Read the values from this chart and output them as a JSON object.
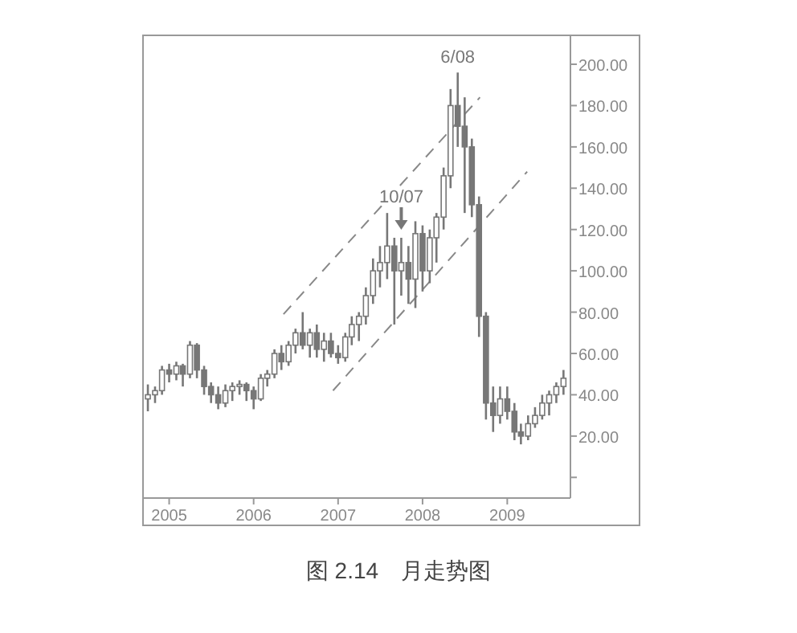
{
  "chart_data": {
    "type": "candlestick",
    "title": "图 2.14　月走势图",
    "x": [
      "2004-10",
      "2004-11",
      "2004-12",
      "2005-01",
      "2005-02",
      "2005-03",
      "2005-04",
      "2005-05",
      "2005-06",
      "2005-07",
      "2005-08",
      "2005-09",
      "2005-10",
      "2005-11",
      "2005-12",
      "2006-01",
      "2006-02",
      "2006-03",
      "2006-04",
      "2006-05",
      "2006-06",
      "2006-07",
      "2006-08",
      "2006-09",
      "2006-10",
      "2006-11",
      "2006-12",
      "2007-01",
      "2007-02",
      "2007-03",
      "2007-04",
      "2007-05",
      "2007-06",
      "2007-07",
      "2007-08",
      "2007-09",
      "2007-10",
      "2007-11",
      "2007-12",
      "2008-01",
      "2008-02",
      "2008-03",
      "2008-04",
      "2008-05",
      "2008-06",
      "2008-07",
      "2008-08",
      "2008-09",
      "2008-10",
      "2008-11",
      "2008-12",
      "2009-01",
      "2009-02",
      "2009-03",
      "2009-04",
      "2009-05",
      "2009-06",
      "2009-07",
      "2009-08",
      "2009-09"
    ],
    "ohlc": [
      [
        38,
        45,
        32,
        40
      ],
      [
        40,
        44,
        36,
        42
      ],
      [
        42,
        54,
        40,
        52
      ],
      [
        52,
        55,
        46,
        50
      ],
      [
        50,
        56,
        47,
        54
      ],
      [
        54,
        55,
        44,
        50
      ],
      [
        50,
        66,
        48,
        64
      ],
      [
        64,
        65,
        48,
        52
      ],
      [
        52,
        54,
        40,
        44
      ],
      [
        44,
        46,
        36,
        40
      ],
      [
        40,
        44,
        33,
        36
      ],
      [
        36,
        45,
        34,
        42
      ],
      [
        42,
        46,
        37,
        44
      ],
      [
        44,
        47,
        40,
        45
      ],
      [
        45,
        46,
        37,
        42
      ],
      [
        42,
        44,
        33,
        38
      ],
      [
        38,
        50,
        37,
        48
      ],
      [
        48,
        52,
        44,
        50
      ],
      [
        50,
        62,
        48,
        60
      ],
      [
        60,
        64,
        52,
        56
      ],
      [
        56,
        66,
        54,
        64
      ],
      [
        64,
        72,
        60,
        70
      ],
      [
        70,
        80,
        62,
        64
      ],
      [
        64,
        72,
        58,
        70
      ],
      [
        70,
        74,
        58,
        62
      ],
      [
        62,
        70,
        56,
        66
      ],
      [
        66,
        70,
        58,
        60
      ],
      [
        60,
        64,
        55,
        58
      ],
      [
        58,
        70,
        56,
        68
      ],
      [
        68,
        78,
        64,
        74
      ],
      [
        74,
        80,
        66,
        78
      ],
      [
        78,
        92,
        74,
        88
      ],
      [
        88,
        106,
        84,
        100
      ],
      [
        100,
        112,
        92,
        104
      ],
      [
        104,
        128,
        96,
        112
      ],
      [
        112,
        116,
        74,
        100
      ],
      [
        100,
        116,
        88,
        104
      ],
      [
        104,
        112,
        84,
        96
      ],
      [
        96,
        124,
        82,
        118
      ],
      [
        118,
        122,
        90,
        100
      ],
      [
        100,
        120,
        94,
        116
      ],
      [
        116,
        128,
        104,
        126
      ],
      [
        126,
        150,
        120,
        146
      ],
      [
        146,
        188,
        140,
        180
      ],
      [
        180,
        196,
        160,
        170
      ],
      [
        170,
        184,
        128,
        160
      ],
      [
        160,
        164,
        126,
        132
      ],
      [
        132,
        136,
        68,
        78
      ],
      [
        78,
        80,
        28,
        36
      ],
      [
        36,
        44,
        22,
        30
      ],
      [
        30,
        44,
        26,
        38
      ],
      [
        38,
        44,
        28,
        32
      ],
      [
        32,
        36,
        18,
        22
      ],
      [
        22,
        26,
        16,
        20
      ],
      [
        20,
        30,
        18,
        26
      ],
      [
        26,
        34,
        24,
        30
      ],
      [
        30,
        40,
        28,
        36
      ],
      [
        36,
        42,
        30,
        40
      ],
      [
        40,
        46,
        36,
        44
      ],
      [
        44,
        52,
        40,
        48
      ]
    ],
    "color": "#777777",
    "series": [
      {
        "type": "line",
        "x": [
          "2006-05-10",
          "2008-09-05"
        ],
        "values": [
          79,
          184
        ],
        "color": "#888888",
        "line_style": "dashed"
      },
      {
        "type": "line",
        "x": [
          "2006-12-10",
          "2009-03-28"
        ],
        "values": [
          42,
          148
        ],
        "color": "#888888",
        "line_style": "dashed"
      }
    ],
    "annotations": [
      {
        "text": "6/08",
        "x": "2008-06",
        "y": 196
      },
      {
        "text": "10/07",
        "x": "2007-10",
        "y": 116
      }
    ],
    "xlim": [
      "2004-09-10",
      "2009-10-01"
    ],
    "xticks": [
      {
        "value": "2005-01",
        "label": "2005"
      },
      {
        "value": "2006-01",
        "label": "2006"
      },
      {
        "value": "2007-01",
        "label": "2007"
      },
      {
        "value": "2008-01",
        "label": "2008"
      },
      {
        "value": "2009-01",
        "label": "2009"
      }
    ],
    "ylim": [
      -10,
      214
    ],
    "yticks": [
      {
        "value": 0,
        "label": null
      },
      {
        "value": 20,
        "label": "20.00"
      },
      {
        "value": 40,
        "label": "40.00"
      },
      {
        "value": 60,
        "label": "60.00"
      },
      {
        "value": 80,
        "label": "80.00"
      },
      {
        "value": 100,
        "label": "100.00"
      },
      {
        "value": 120,
        "label": "120.00"
      },
      {
        "value": 140,
        "label": "140.00"
      },
      {
        "value": 160,
        "label": "160.00"
      },
      {
        "value": 180,
        "label": "180.00"
      },
      {
        "value": 200,
        "label": "200.00"
      }
    ]
  }
}
